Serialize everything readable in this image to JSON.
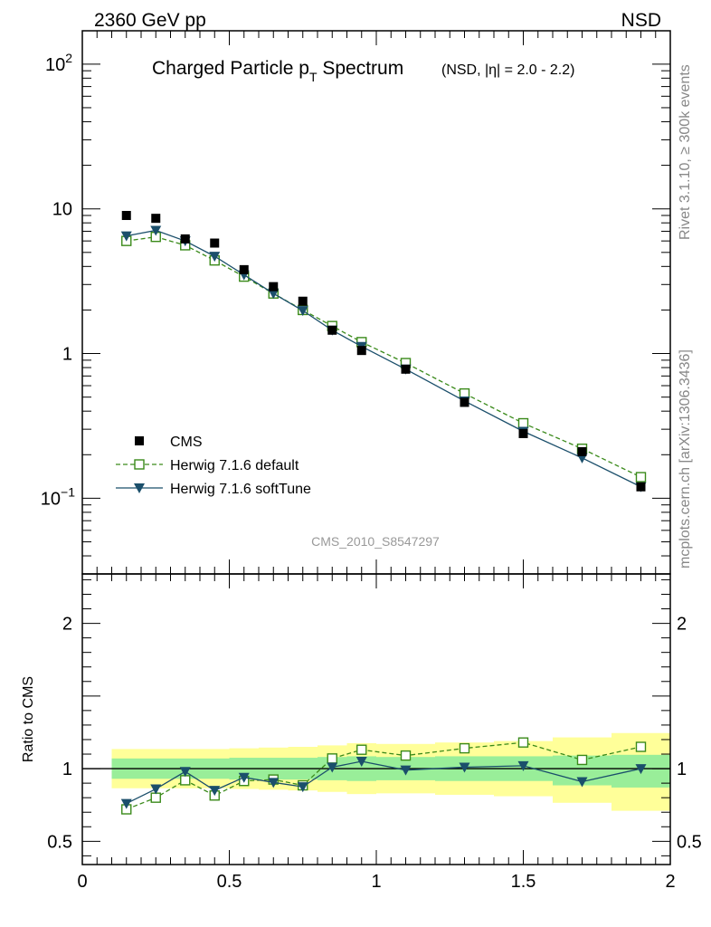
{
  "header": {
    "left": "2360 GeV pp",
    "right": "NSD"
  },
  "title": {
    "main": "Charged Particle p",
    "main_sub": "T",
    "main_tail": " Spectrum",
    "qualifier": "(NSD, |η| = 2.0 - 2.2)"
  },
  "side_labels": {
    "rivet": "Rivet 3.1.10, ≥ 300k events",
    "mcplots": "mcplots.cern.ch [arXiv:1306.3436]"
  },
  "analysis_tag": "CMS_2010_S8547297",
  "chart_data": [
    {
      "type": "scatter",
      "panel": "main",
      "yscale": "log",
      "xlim": [
        0,
        2
      ],
      "ylim": [
        0.03,
        170
      ],
      "ytick_labels": [
        "10^-1",
        "1",
        "10",
        "10^2"
      ],
      "legend_position": "lower-left",
      "series": [
        {
          "name": "CMS",
          "color": "#000000",
          "marker": "filled-square",
          "x": [
            0.15,
            0.25,
            0.35,
            0.45,
            0.55,
            0.65,
            0.75,
            0.85,
            0.95,
            1.1,
            1.3,
            1.5,
            1.7,
            1.9
          ],
          "y": [
            9.0,
            8.6,
            6.2,
            5.8,
            3.8,
            2.9,
            2.3,
            1.45,
            1.05,
            0.78,
            0.46,
            0.28,
            0.21,
            0.12
          ]
        },
        {
          "name": "Herwig 7.1.6 default",
          "color": "#3a8a1a",
          "marker": "open-square",
          "line": "dashed",
          "x": [
            0.15,
            0.25,
            0.35,
            0.45,
            0.55,
            0.65,
            0.75,
            0.85,
            0.95,
            1.1,
            1.3,
            1.5,
            1.7,
            1.9
          ],
          "y": [
            6.0,
            6.4,
            5.6,
            4.4,
            3.4,
            2.6,
            2.0,
            1.55,
            1.2,
            0.86,
            0.53,
            0.33,
            0.22,
            0.14
          ]
        },
        {
          "name": "Herwig 7.1.6 softTune",
          "color": "#1b4f6b",
          "marker": "filled-triangle-down",
          "line": "solid",
          "x": [
            0.15,
            0.25,
            0.35,
            0.45,
            0.55,
            0.65,
            0.75,
            0.85,
            0.95,
            1.1,
            1.3,
            1.5,
            1.7,
            1.9
          ],
          "y": [
            6.5,
            7.1,
            6.0,
            4.7,
            3.5,
            2.6,
            1.98,
            1.45,
            1.12,
            0.78,
            0.47,
            0.29,
            0.19,
            0.12
          ]
        }
      ]
    },
    {
      "type": "line",
      "panel": "ratio",
      "ylabel": "Ratio to CMS",
      "xlim": [
        0,
        2
      ],
      "ylim": [
        0.34,
        2.34
      ],
      "xtick_labels": [
        "0",
        "0.5",
        "1",
        "1.5",
        "2"
      ],
      "ytick_labels": [
        "0.5",
        "1",
        "2"
      ],
      "bands": {
        "x_edges": [
          0.1,
          0.2,
          0.3,
          0.4,
          0.5,
          0.6,
          0.7,
          0.8,
          0.9,
          1.0,
          1.2,
          1.4,
          1.6,
          1.8,
          2.0
        ],
        "inner_upper": [
          1.07,
          1.07,
          1.07,
          1.07,
          1.075,
          1.075,
          1.075,
          1.08,
          1.085,
          1.08,
          1.085,
          1.085,
          1.09,
          1.095
        ],
        "inner_lower": [
          0.93,
          0.93,
          0.93,
          0.93,
          0.925,
          0.925,
          0.925,
          0.92,
          0.915,
          0.92,
          0.915,
          0.915,
          0.885,
          0.87
        ],
        "outer_upper": [
          1.135,
          1.135,
          1.135,
          1.135,
          1.14,
          1.145,
          1.15,
          1.16,
          1.175,
          1.17,
          1.18,
          1.19,
          1.215,
          1.245
        ],
        "outer_lower": [
          0.865,
          0.865,
          0.865,
          0.865,
          0.86,
          0.855,
          0.85,
          0.84,
          0.825,
          0.83,
          0.82,
          0.81,
          0.765,
          0.71
        ],
        "inner_color": "#99ee99",
        "outer_color": "#ffff99"
      },
      "series": [
        {
          "name": "Herwig 7.1.6 default",
          "color": "#3a8a1a",
          "marker": "open-square",
          "line": "dashed",
          "x": [
            0.15,
            0.25,
            0.35,
            0.45,
            0.55,
            0.65,
            0.75,
            0.85,
            0.95,
            1.1,
            1.3,
            1.5,
            1.7,
            1.9
          ],
          "y": [
            0.72,
            0.8,
            0.92,
            0.815,
            0.915,
            0.925,
            0.885,
            1.07,
            1.13,
            1.09,
            1.14,
            1.18,
            1.06,
            1.15
          ]
        },
        {
          "name": "Herwig 7.1.6 softTune",
          "color": "#1b4f6b",
          "marker": "filled-triangle-down",
          "line": "solid",
          "x": [
            0.15,
            0.25,
            0.35,
            0.45,
            0.55,
            0.65,
            0.75,
            0.85,
            0.95,
            1.1,
            1.3,
            1.5,
            1.7,
            1.9
          ],
          "y": [
            0.76,
            0.86,
            0.98,
            0.85,
            0.94,
            0.905,
            0.875,
            1.01,
            1.05,
            0.99,
            1.01,
            1.02,
            0.91,
            1.0
          ]
        }
      ]
    }
  ]
}
